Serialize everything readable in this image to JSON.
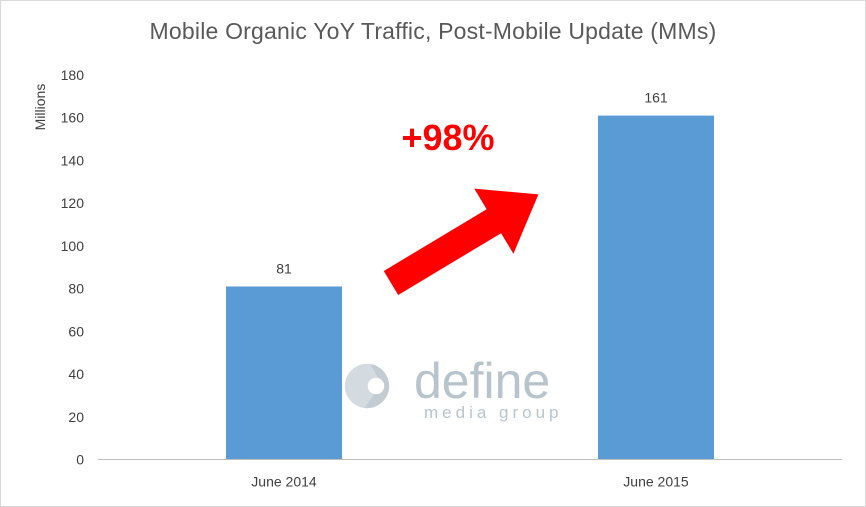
{
  "chart_data": {
    "type": "bar",
    "title": "Mobile Organic YoY Traffic, Post-Mobile Update (MMs)",
    "ylabel": "Millions",
    "xlabel": "",
    "categories": [
      "June 2014",
      "June 2015"
    ],
    "values": [
      81,
      161
    ],
    "data_labels": [
      "81",
      "161"
    ],
    "ylim": [
      0,
      180
    ],
    "yticks": [
      0,
      20,
      40,
      60,
      80,
      100,
      120,
      140,
      160,
      180
    ],
    "bar_color": "#5b9bd5",
    "grid": false,
    "legend": "none",
    "annotation": {
      "text": "+98%",
      "color": "#ff0000",
      "icon": "red-arrow-up-right-icon"
    }
  },
  "watermark": {
    "logo_icon": "define-media-group-logo-icon",
    "name": "define",
    "tagline": "media group"
  }
}
